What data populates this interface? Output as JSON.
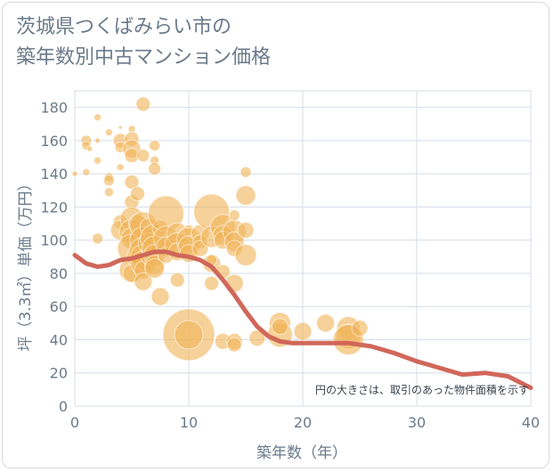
{
  "title_line1": "茨城県つくばみらい市の",
  "title_line2": "築年数別中古マンション価格",
  "chart_data": {
    "type": "scatter",
    "xlabel": "築年数（年）",
    "ylabel": "坪（3.3㎡）単価（万円）",
    "xlim": [
      0,
      40
    ],
    "ylim": [
      0,
      190
    ],
    "x_ticks": [
      "0",
      "10",
      "20",
      "30",
      "40"
    ],
    "y_ticks": [
      "0",
      "20",
      "40",
      "60",
      "80",
      "100",
      "120",
      "140",
      "160",
      "180"
    ],
    "grid": true,
    "note": "円の大きさは、取引のあった物件面積を示す",
    "colors": {
      "bubble": "#f0b45a",
      "line": "#d0675a",
      "grid": "#d5dde6",
      "text": "#6b7a8a"
    },
    "bubbles": [
      {
        "x": 0,
        "y": 140,
        "r": 3
      },
      {
        "x": 1,
        "y": 160,
        "r": 6
      },
      {
        "x": 1,
        "y": 157,
        "r": 5
      },
      {
        "x": 1,
        "y": 141,
        "r": 4
      },
      {
        "x": 1.3,
        "y": 155,
        "r": 3
      },
      {
        "x": 2,
        "y": 174,
        "r": 4
      },
      {
        "x": 2,
        "y": 160,
        "r": 3
      },
      {
        "x": 2,
        "y": 148,
        "r": 4
      },
      {
        "x": 2,
        "y": 101,
        "r": 6
      },
      {
        "x": 3,
        "y": 165,
        "r": 4
      },
      {
        "x": 3,
        "y": 138,
        "r": 5
      },
      {
        "x": 3,
        "y": 136,
        "r": 6
      },
      {
        "x": 3,
        "y": 129,
        "r": 5
      },
      {
        "x": 4,
        "y": 168,
        "r": 2
      },
      {
        "x": 4,
        "y": 160,
        "r": 8
      },
      {
        "x": 4,
        "y": 156,
        "r": 6
      },
      {
        "x": 4,
        "y": 144,
        "r": 4
      },
      {
        "x": 4,
        "y": 111,
        "r": 8
      },
      {
        "x": 4,
        "y": 106,
        "r": 11
      },
      {
        "x": 5,
        "y": 167,
        "r": 4
      },
      {
        "x": 5,
        "y": 161,
        "r": 8
      },
      {
        "x": 5,
        "y": 155,
        "r": 10
      },
      {
        "x": 5,
        "y": 151,
        "r": 8
      },
      {
        "x": 5,
        "y": 135,
        "r": 8
      },
      {
        "x": 5,
        "y": 123,
        "r": 8
      },
      {
        "x": 5,
        "y": 113,
        "r": 13
      },
      {
        "x": 5,
        "y": 105,
        "r": 14
      },
      {
        "x": 5,
        "y": 101,
        "r": 12
      },
      {
        "x": 5,
        "y": 95,
        "r": 16
      },
      {
        "x": 5,
        "y": 82,
        "r": 14
      },
      {
        "x": 5,
        "y": 80,
        "r": 10
      },
      {
        "x": 5.5,
        "y": 128,
        "r": 8
      },
      {
        "x": 5.5,
        "y": 110,
        "r": 10
      },
      {
        "x": 5.5,
        "y": 90,
        "r": 12
      },
      {
        "x": 6,
        "y": 182,
        "r": 8
      },
      {
        "x": 6,
        "y": 151,
        "r": 7
      },
      {
        "x": 6,
        "y": 109,
        "r": 15
      },
      {
        "x": 6,
        "y": 100,
        "r": 15
      },
      {
        "x": 6,
        "y": 93,
        "r": 16
      },
      {
        "x": 6,
        "y": 90,
        "r": 14
      },
      {
        "x": 6,
        "y": 86,
        "r": 14
      },
      {
        "x": 6,
        "y": 82,
        "r": 10
      },
      {
        "x": 6,
        "y": 75,
        "r": 10
      },
      {
        "x": 6.5,
        "y": 108,
        "r": 10
      },
      {
        "x": 6.5,
        "y": 98,
        "r": 12
      },
      {
        "x": 6.5,
        "y": 90,
        "r": 9
      },
      {
        "x": 7,
        "y": 157,
        "r": 6
      },
      {
        "x": 7,
        "y": 148,
        "r": 5
      },
      {
        "x": 7,
        "y": 143,
        "r": 7
      },
      {
        "x": 7,
        "y": 101,
        "r": 16
      },
      {
        "x": 7,
        "y": 95,
        "r": 14
      },
      {
        "x": 7,
        "y": 91,
        "r": 12
      },
      {
        "x": 7,
        "y": 85,
        "r": 11
      },
      {
        "x": 7,
        "y": 83,
        "r": 11
      },
      {
        "x": 7.5,
        "y": 107,
        "r": 9
      },
      {
        "x": 7.5,
        "y": 66,
        "r": 10
      },
      {
        "x": 8,
        "y": 116,
        "r": 20
      },
      {
        "x": 8,
        "y": 101,
        "r": 14
      },
      {
        "x": 8,
        "y": 96,
        "r": 11
      },
      {
        "x": 8,
        "y": 91,
        "r": 9
      },
      {
        "x": 9,
        "y": 104,
        "r": 12
      },
      {
        "x": 9,
        "y": 97,
        "r": 14
      },
      {
        "x": 9,
        "y": 93,
        "r": 10
      },
      {
        "x": 9,
        "y": 76,
        "r": 8
      },
      {
        "x": 10,
        "y": 106,
        "r": 6
      },
      {
        "x": 10,
        "y": 100,
        "r": 14
      },
      {
        "x": 10,
        "y": 96,
        "r": 12
      },
      {
        "x": 10,
        "y": 92,
        "r": 10
      },
      {
        "x": 10,
        "y": 43,
        "r": 29
      },
      {
        "x": 10,
        "y": 43,
        "r": 16
      },
      {
        "x": 11,
        "y": 104,
        "r": 10
      },
      {
        "x": 11,
        "y": 99,
        "r": 8
      },
      {
        "x": 11,
        "y": 95,
        "r": 9
      },
      {
        "x": 12,
        "y": 117,
        "r": 20
      },
      {
        "x": 12,
        "y": 102,
        "r": 12
      },
      {
        "x": 12,
        "y": 86,
        "r": 10
      },
      {
        "x": 12,
        "y": 74,
        "r": 8
      },
      {
        "x": 12,
        "y": 88,
        "r": 6
      },
      {
        "x": 13,
        "y": 108,
        "r": 14
      },
      {
        "x": 13,
        "y": 103,
        "r": 11
      },
      {
        "x": 13,
        "y": 100,
        "r": 10
      },
      {
        "x": 13,
        "y": 81,
        "r": 8
      },
      {
        "x": 13,
        "y": 39,
        "r": 9
      },
      {
        "x": 14,
        "y": 115,
        "r": 6
      },
      {
        "x": 14,
        "y": 105,
        "r": 13
      },
      {
        "x": 14,
        "y": 99,
        "r": 11
      },
      {
        "x": 14,
        "y": 95,
        "r": 9
      },
      {
        "x": 14,
        "y": 74,
        "r": 10
      },
      {
        "x": 14,
        "y": 39,
        "r": 9
      },
      {
        "x": 14,
        "y": 37,
        "r": 8
      },
      {
        "x": 15,
        "y": 141,
        "r": 6
      },
      {
        "x": 15,
        "y": 127,
        "r": 11
      },
      {
        "x": 15,
        "y": 106,
        "r": 9
      },
      {
        "x": 15,
        "y": 91,
        "r": 12
      },
      {
        "x": 16,
        "y": 41,
        "r": 9
      },
      {
        "x": 18,
        "y": 50,
        "r": 12
      },
      {
        "x": 18,
        "y": 43,
        "r": 14
      },
      {
        "x": 18,
        "y": 48,
        "r": 9
      },
      {
        "x": 20,
        "y": 45,
        "r": 10
      },
      {
        "x": 22,
        "y": 50,
        "r": 10
      },
      {
        "x": 24,
        "y": 47,
        "r": 13
      },
      {
        "x": 24,
        "y": 42,
        "r": 14
      },
      {
        "x": 24,
        "y": 40,
        "r": 17
      },
      {
        "x": 25,
        "y": 47,
        "r": 9
      }
    ],
    "line": {
      "x": [
        0,
        1,
        2,
        3,
        4,
        5,
        6,
        7,
        8,
        9,
        10,
        11,
        12,
        13,
        14,
        15,
        16,
        17,
        18,
        19,
        20,
        22,
        24,
        26,
        28,
        30,
        31,
        33,
        34,
        36,
        37,
        38,
        40
      ],
      "y": [
        91,
        86,
        84,
        85,
        88,
        89,
        91,
        93,
        93,
        91,
        90,
        88,
        84,
        76,
        67,
        57,
        48,
        42,
        39,
        38,
        38,
        38,
        38,
        36,
        32,
        27,
        25,
        21,
        19,
        20,
        19,
        18,
        11
      ]
    }
  }
}
